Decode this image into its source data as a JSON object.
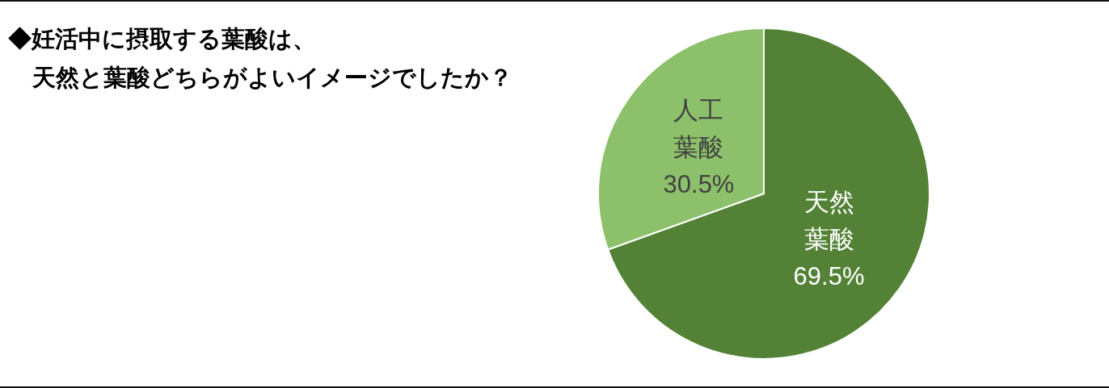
{
  "chart_data": {
    "type": "pie",
    "title": "◆妊活中に摂取する葉酸は、天然と葉酸どちらがよいイメージでしたか？",
    "categories": [
      "天然葉酸",
      "人工葉酸"
    ],
    "values": [
      69.5,
      30.5
    ],
    "colors": [
      "#538135",
      "#8dc06a"
    ],
    "value_labels": [
      "69.5%",
      "30.5%"
    ]
  }
}
